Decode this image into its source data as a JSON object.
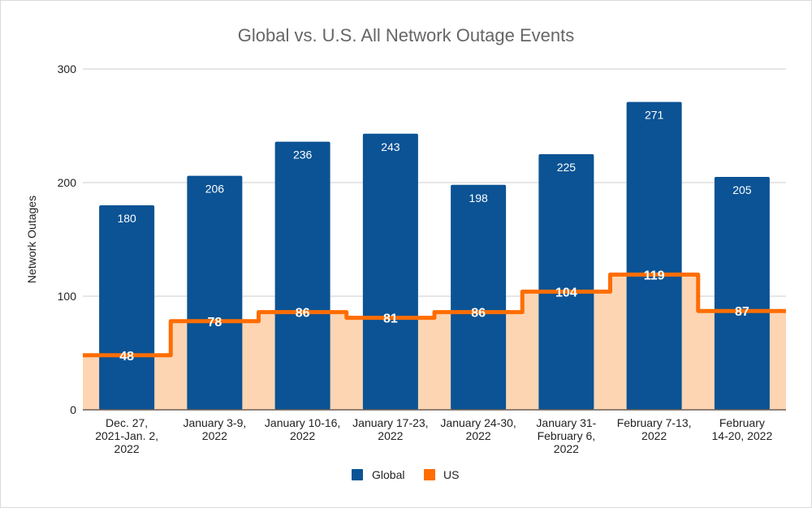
{
  "chart_data": {
    "type": "bar",
    "title": "Global vs. U.S. All Network Outage Events",
    "xlabel": "",
    "ylabel": "Network Outages",
    "ylim": [
      0,
      300
    ],
    "yticks": [
      "0",
      "100",
      "200",
      "300"
    ],
    "grid": true,
    "legend_position": "bottom",
    "categories": [
      [
        "Dec. 27,",
        "2021-Jan. 2,",
        "2022"
      ],
      [
        "January 3-9,",
        "2022"
      ],
      [
        "January 10-16,",
        "2022"
      ],
      [
        "January 17-23,",
        "2022"
      ],
      [
        "January 24-30,",
        "2022"
      ],
      [
        "January 31-",
        "February 6,",
        "2022"
      ],
      [
        "February 7-13,",
        "2022"
      ],
      [
        "February",
        "14-20, 2022"
      ]
    ],
    "series": [
      {
        "name": "Global",
        "type": "bar",
        "color": "#0b5394",
        "values": [
          180,
          206,
          236,
          243,
          198,
          225,
          271,
          205
        ]
      },
      {
        "name": "US",
        "type": "stepped-area",
        "color": "#ff6d01",
        "fill": "#fdd5b3",
        "values": [
          48,
          78,
          86,
          81,
          86,
          104,
          119,
          87
        ]
      }
    ]
  }
}
